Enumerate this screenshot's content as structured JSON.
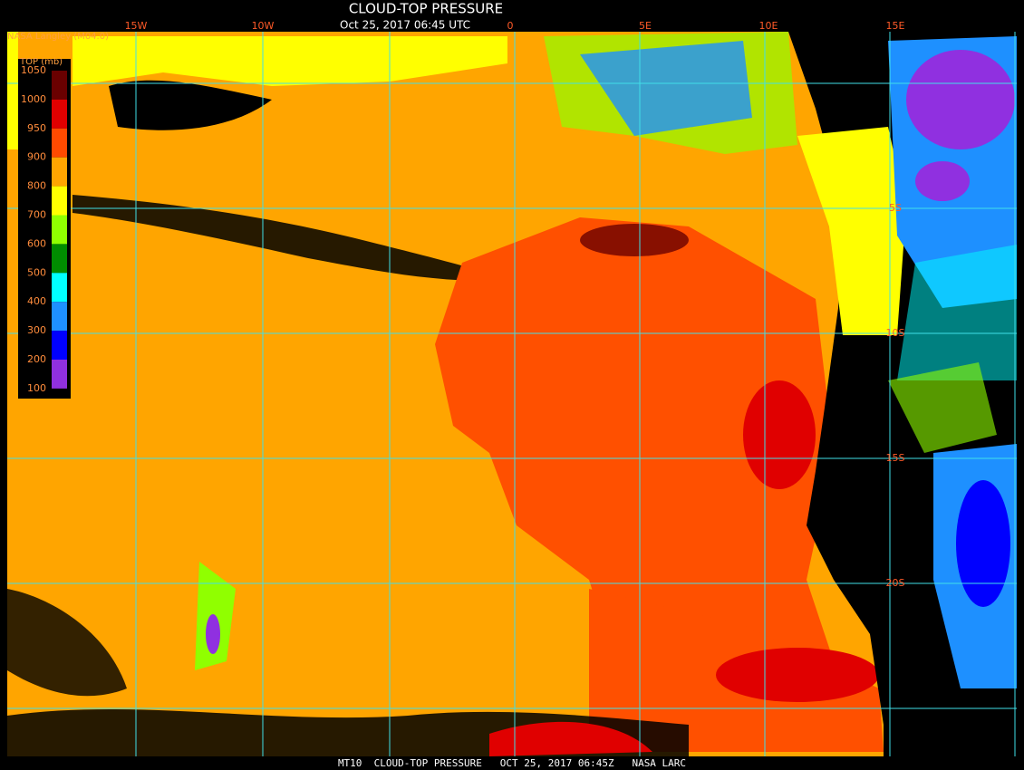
{
  "header": {
    "title": "CLOUD-TOP PRESSURE",
    "subtitle": "Oct 25, 2017 06:45 UTC",
    "source": "NASA Langley (M04.0)"
  },
  "legend": {
    "title": "TOP (mb)",
    "ticks": [
      1050,
      1000,
      950,
      900,
      800,
      700,
      600,
      500,
      400,
      300,
      200,
      100
    ],
    "colors": [
      "#6a0000",
      "#e00000",
      "#ff4a00",
      "#ffa500",
      "#ffff00",
      "#90ff00",
      "#008c00",
      "#00ffff",
      "#1e90ff",
      "#0000ff",
      "#9030e0"
    ]
  },
  "grid": {
    "longitudes": [
      "15W",
      "10W",
      "0",
      "5E",
      "10E",
      "15E"
    ],
    "latitudes": [
      "5S",
      "10S",
      "15S",
      "20S"
    ]
  },
  "footer": "MT10  CLOUD-TOP PRESSURE   OCT 25, 2017 06:45Z   NASA LARC"
}
